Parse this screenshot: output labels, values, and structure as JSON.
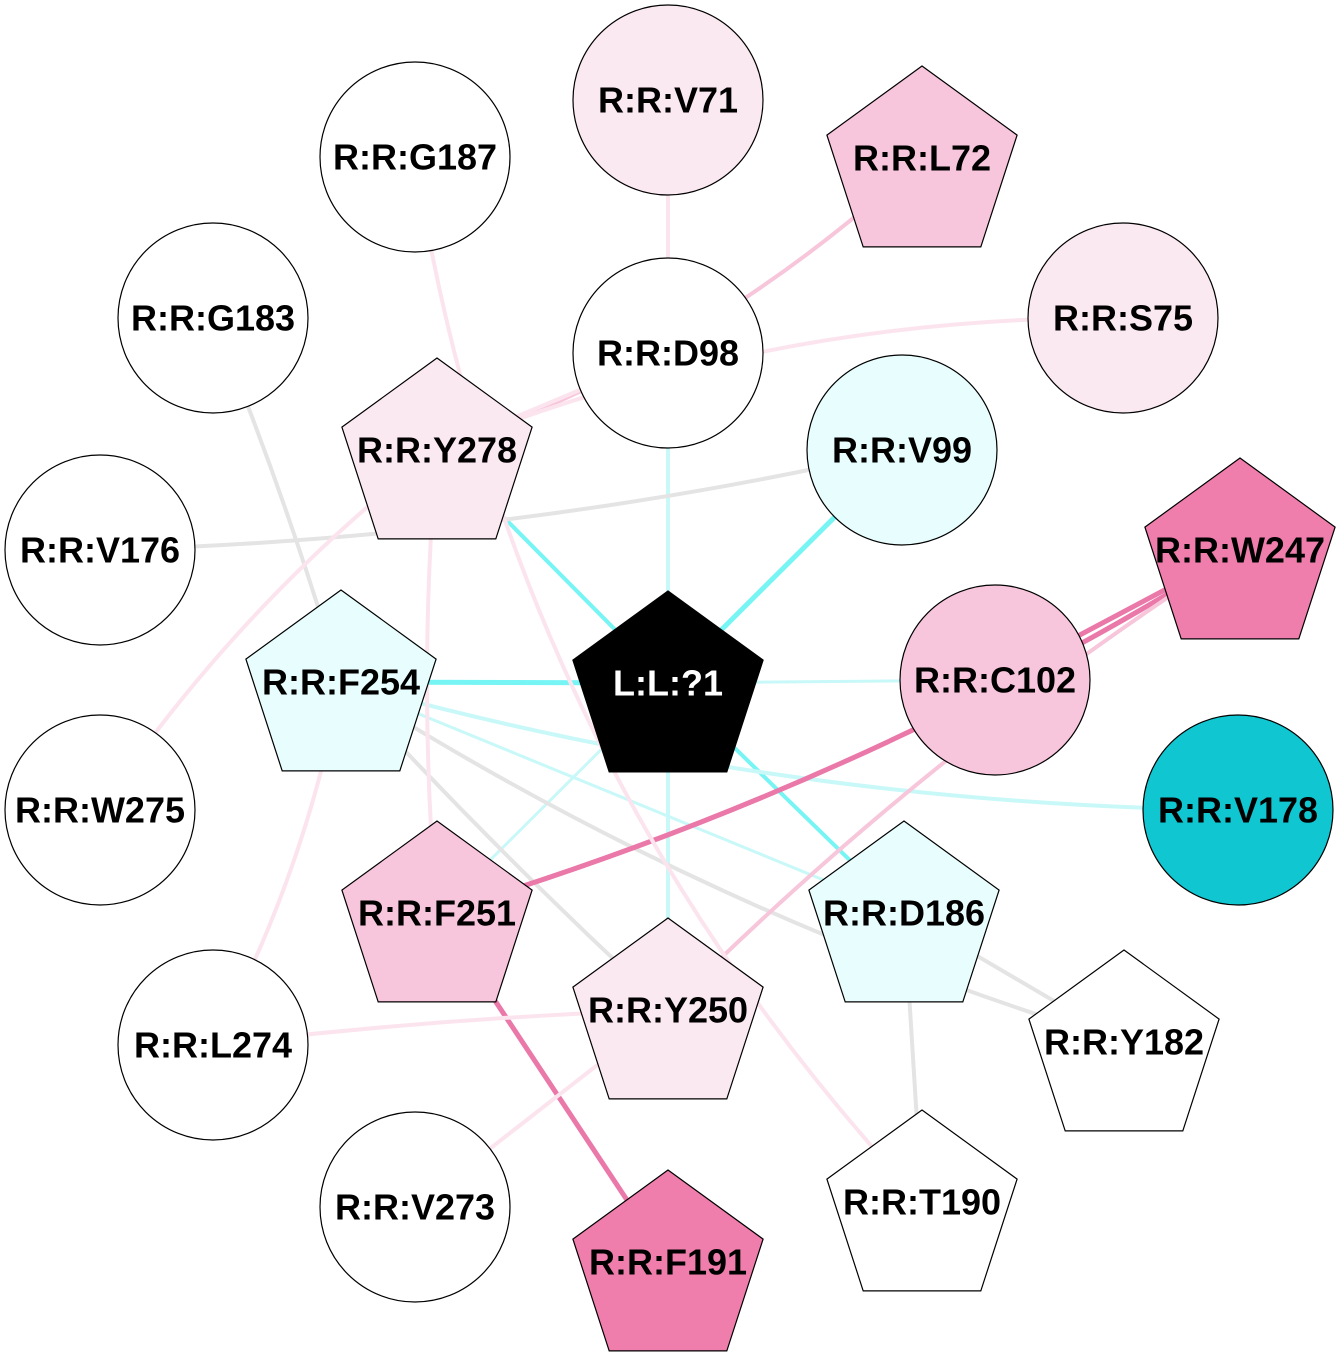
{
  "colors": {
    "white": "#ffffff",
    "black": "#000000",
    "light_pink": "#fbe9f2",
    "mid_pink": "#f8c6dc",
    "strong_pink": "#ef7eac",
    "light_cyan": "#e8fdfd",
    "teal": "#10c6d0",
    "grey_edge": "#e4e4e4",
    "cyan_edge": "#77f4f4",
    "pale_cyan_edge": "#c9f8f8",
    "pink_edge": "#f7c6da",
    "pale_pink_edge": "#fce4ee",
    "strong_pink_edge": "#ea78a8"
  },
  "nodes": [
    {
      "id": "L:L:?1",
      "label": "L:L:?1",
      "shape": "pentagon",
      "fill": "black",
      "text_color": "white"
    },
    {
      "id": "R:R:V71",
      "label": "R:R:V71",
      "shape": "circle",
      "fill": "light_pink"
    },
    {
      "id": "R:R:L72",
      "label": "R:R:L72",
      "shape": "pentagon",
      "fill": "mid_pink"
    },
    {
      "id": "R:R:G187",
      "label": "R:R:G187",
      "shape": "circle",
      "fill": "white"
    },
    {
      "id": "R:R:S75",
      "label": "R:R:S75",
      "shape": "circle",
      "fill": "light_pink"
    },
    {
      "id": "R:R:G183",
      "label": "R:R:G183",
      "shape": "circle",
      "fill": "white"
    },
    {
      "id": "R:R:D98",
      "label": "R:R:D98",
      "shape": "circle",
      "fill": "white"
    },
    {
      "id": "R:R:Y278",
      "label": "R:R:Y278",
      "shape": "pentagon",
      "fill": "light_pink"
    },
    {
      "id": "R:R:V99",
      "label": "R:R:V99",
      "shape": "circle",
      "fill": "light_cyan"
    },
    {
      "id": "R:R:W247",
      "label": "R:R:W247",
      "shape": "pentagon",
      "fill": "strong_pink"
    },
    {
      "id": "R:R:V176",
      "label": "R:R:V176",
      "shape": "circle",
      "fill": "white"
    },
    {
      "id": "R:R:F254",
      "label": "R:R:F254",
      "shape": "pentagon",
      "fill": "light_cyan"
    },
    {
      "id": "R:R:C102",
      "label": "R:R:C102",
      "shape": "circle",
      "fill": "mid_pink"
    },
    {
      "id": "R:R:V178",
      "label": "R:R:V178",
      "shape": "circle",
      "fill": "teal"
    },
    {
      "id": "R:R:W275",
      "label": "R:R:W275",
      "shape": "circle",
      "fill": "white"
    },
    {
      "id": "R:R:F251",
      "label": "R:R:F251",
      "shape": "pentagon",
      "fill": "mid_pink"
    },
    {
      "id": "R:R:D186",
      "label": "R:R:D186",
      "shape": "pentagon",
      "fill": "light_cyan"
    },
    {
      "id": "R:R:Y250",
      "label": "R:R:Y250",
      "shape": "pentagon",
      "fill": "light_pink"
    },
    {
      "id": "R:R:Y182",
      "label": "R:R:Y182",
      "shape": "pentagon",
      "fill": "white"
    },
    {
      "id": "R:R:L274",
      "label": "R:R:L274",
      "shape": "circle",
      "fill": "white"
    },
    {
      "id": "R:R:T190",
      "label": "R:R:T190",
      "shape": "pentagon",
      "fill": "white"
    },
    {
      "id": "R:R:V273",
      "label": "R:R:V273",
      "shape": "circle",
      "fill": "white"
    },
    {
      "id": "R:R:F191",
      "label": "R:R:F191",
      "shape": "pentagon",
      "fill": "strong_pink"
    }
  ],
  "edges": [
    {
      "source": "L:L:?1",
      "target": "R:R:F254",
      "color": "cyan_edge",
      "weight": "strong"
    },
    {
      "source": "L:L:?1",
      "target": "R:R:V99",
      "color": "cyan_edge",
      "weight": "strong"
    },
    {
      "source": "L:L:?1",
      "target": "R:R:D186",
      "color": "cyan_edge",
      "weight": "medium"
    },
    {
      "source": "L:L:?1",
      "target": "R:R:Y278",
      "color": "cyan_edge",
      "weight": "medium"
    },
    {
      "source": "L:L:?1",
      "target": "R:R:D98",
      "color": "pale_cyan_edge",
      "weight": "medium"
    },
    {
      "source": "L:L:?1",
      "target": "R:R:Y250",
      "color": "pale_cyan_edge",
      "weight": "medium"
    },
    {
      "source": "L:L:?1",
      "target": "R:R:C102",
      "color": "pale_cyan_edge",
      "weight": "light"
    },
    {
      "source": "L:L:?1",
      "target": "R:R:F251",
      "color": "pale_cyan_edge",
      "weight": "light"
    },
    {
      "source": "R:R:F254",
      "target": "R:R:V178",
      "color": "pale_cyan_edge",
      "weight": "medium"
    },
    {
      "source": "R:R:F254",
      "target": "R:R:D186",
      "color": "pale_cyan_edge",
      "weight": "light"
    },
    {
      "source": "R:R:F254",
      "target": "R:R:G183",
      "color": "grey_edge",
      "weight": "medium"
    },
    {
      "source": "R:R:F254",
      "target": "R:R:Y182",
      "color": "grey_edge",
      "weight": "medium"
    },
    {
      "source": "R:R:F254",
      "target": "R:R:Y250",
      "color": "grey_edge",
      "weight": "medium"
    },
    {
      "source": "R:R:V99",
      "target": "R:R:V176",
      "color": "grey_edge",
      "weight": "medium"
    },
    {
      "source": "R:R:D186",
      "target": "R:R:T190",
      "color": "grey_edge",
      "weight": "medium"
    },
    {
      "source": "R:R:D186",
      "target": "R:R:Y182",
      "color": "grey_edge",
      "weight": "medium"
    },
    {
      "source": "R:R:W247",
      "target": "R:R:F251",
      "color": "strong_pink_edge",
      "weight": "strong"
    },
    {
      "source": "R:R:W247",
      "target": "R:R:C102",
      "color": "strong_pink_edge",
      "weight": "strong"
    },
    {
      "source": "R:R:F251",
      "target": "R:R:F191",
      "color": "strong_pink_edge",
      "weight": "strong"
    },
    {
      "source": "R:R:W247",
      "target": "R:R:Y250",
      "color": "pink_edge",
      "weight": "medium"
    },
    {
      "source": "R:R:L72",
      "target": "R:R:Y278",
      "color": "pink_edge",
      "weight": "medium"
    },
    {
      "source": "R:R:V71",
      "target": "R:R:D98",
      "color": "pale_pink_edge",
      "weight": "medium"
    },
    {
      "source": "R:R:S75",
      "target": "R:R:Y278",
      "color": "pale_pink_edge",
      "weight": "medium"
    },
    {
      "source": "R:R:Y278",
      "target": "R:R:D98",
      "color": "pale_pink_edge",
      "weight": "medium"
    },
    {
      "source": "R:R:Y278",
      "target": "R:R:F251",
      "color": "pale_pink_edge",
      "weight": "medium"
    },
    {
      "source": "R:R:Y278",
      "target": "R:R:W275",
      "color": "pale_pink_edge",
      "weight": "medium"
    },
    {
      "source": "R:R:G187",
      "target": "R:R:T190",
      "color": "pale_pink_edge",
      "weight": "medium"
    },
    {
      "source": "R:R:Y250",
      "target": "R:R:L274",
      "color": "pale_pink_edge",
      "weight": "medium"
    },
    {
      "source": "R:R:Y250",
      "target": "R:R:V273",
      "color": "pale_pink_edge",
      "weight": "medium"
    },
    {
      "source": "R:R:F254",
      "target": "R:R:L274",
      "color": "pale_pink_edge",
      "weight": "medium"
    }
  ]
}
